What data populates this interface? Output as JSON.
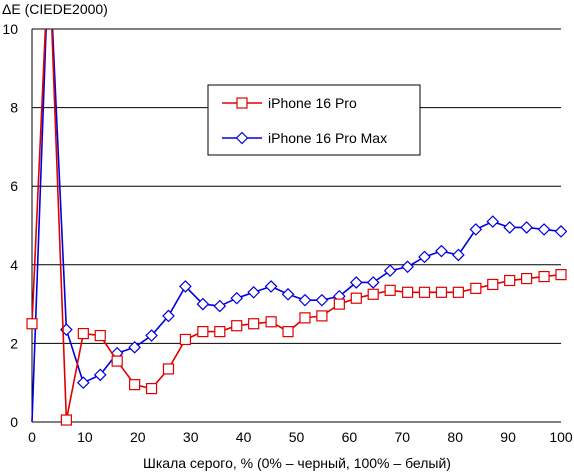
{
  "chart_data": {
    "type": "line",
    "ylabel": "ΔE (CIEDE2000)",
    "xlabel": "Шкала серого, % (0% – черный, 100% – белый)",
    "xlim": [
      0,
      100
    ],
    "ylim": [
      0,
      10
    ],
    "x_ticks": [
      0,
      10,
      20,
      30,
      40,
      50,
      60,
      70,
      80,
      90,
      100
    ],
    "y_ticks": [
      0,
      2,
      4,
      6,
      8,
      10
    ],
    "grid": "horizontal",
    "legend_position": "center-top",
    "x": [
      0,
      3.2,
      6.5,
      9.7,
      12.9,
      16.1,
      19.4,
      22.6,
      25.8,
      29.0,
      32.3,
      35.5,
      38.7,
      41.9,
      45.2,
      48.4,
      51.6,
      54.8,
      58.1,
      61.3,
      64.5,
      67.7,
      71.0,
      74.2,
      77.4,
      80.6,
      83.9,
      87.1,
      90.3,
      93.5,
      96.8,
      100
    ],
    "series": [
      {
        "name": "iPhone 16 Pro",
        "color": "#e00000",
        "marker": "square",
        "values": [
          2.5,
          12.0,
          0.05,
          2.25,
          2.2,
          1.55,
          0.95,
          0.85,
          1.35,
          2.1,
          2.3,
          2.3,
          2.45,
          2.5,
          2.55,
          2.3,
          2.65,
          2.7,
          3.0,
          3.15,
          3.25,
          3.35,
          3.3,
          3.3,
          3.3,
          3.3,
          3.4,
          3.5,
          3.6,
          3.65,
          3.7,
          3.75
        ]
      },
      {
        "name": "iPhone 16 Pro Max",
        "color": "#0000e0",
        "marker": "diamond",
        "values": [
          0,
          12.0,
          2.35,
          1.0,
          1.2,
          1.75,
          1.9,
          2.2,
          2.7,
          3.45,
          3.0,
          2.95,
          3.15,
          3.3,
          3.45,
          3.25,
          3.1,
          3.1,
          3.2,
          3.55,
          3.55,
          3.85,
          3.95,
          4.2,
          4.35,
          4.25,
          4.9,
          5.1,
          4.95,
          4.95,
          4.9,
          4.85
        ]
      }
    ]
  }
}
